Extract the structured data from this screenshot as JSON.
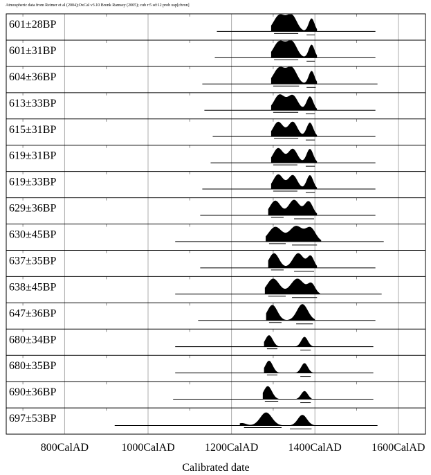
{
  "header_note": "Atmospheric data from Reimer et al (2004);OxCal v3.10 Bronk Ramsey (2005); cub r:5 sd:12 prob usp[chron]",
  "chart_data": {
    "type": "multiplot",
    "subtype": "radiocarbon calibration probability distributions",
    "title": "",
    "xlabel": "Calibrated date",
    "ylabel": "",
    "xlim": [
      660,
      1665
    ],
    "x_ticks": [
      {
        "value": 800,
        "label": "800CalAD"
      },
      {
        "value": 1000,
        "label": "1000CalAD"
      },
      {
        "value": 1200,
        "label": "1200CalAD"
      },
      {
        "value": 1400,
        "label": "1400CalAD"
      },
      {
        "value": 1600,
        "label": "1600CalAD"
      }
    ],
    "grid": true,
    "colors": {
      "fill": "#000000",
      "grid": "#aaaaaa",
      "frame": "#000000"
    },
    "series": [
      {
        "name": "601±28BP",
        "line": [
          1165,
          1545
        ],
        "peaks": [
          [
            1315,
            14,
            1
          ],
          [
            1345,
            12,
            0.95
          ],
          [
            1392,
            7,
            0.8
          ]
        ],
        "range": [
          1295,
          1405
        ],
        "hpd": [
          [
            1302,
            1360
          ],
          [
            1380,
            1400
          ]
        ]
      },
      {
        "name": "601±31BP",
        "line": [
          1160,
          1545
        ],
        "peaks": [
          [
            1315,
            14,
            1
          ],
          [
            1345,
            12,
            0.95
          ],
          [
            1392,
            7,
            0.8
          ]
        ],
        "range": [
          1295,
          1405
        ],
        "hpd": [
          [
            1302,
            1360
          ],
          [
            1380,
            1400
          ]
        ]
      },
      {
        "name": "604±36BP",
        "line": [
          1130,
          1550
        ],
        "peaks": [
          [
            1315,
            14,
            1
          ],
          [
            1345,
            12,
            0.95
          ],
          [
            1392,
            7,
            0.8
          ]
        ],
        "range": [
          1295,
          1405
        ],
        "hpd": [
          [
            1300,
            1362
          ],
          [
            1380,
            1402
          ]
        ]
      },
      {
        "name": "613±33BP",
        "line": [
          1135,
          1545
        ],
        "peaks": [
          [
            1315,
            13,
            0.95
          ],
          [
            1347,
            12,
            0.9
          ],
          [
            1388,
            8,
            0.85
          ]
        ],
        "range": [
          1295,
          1405
        ],
        "hpd": [
          [
            1300,
            1360
          ],
          [
            1378,
            1400
          ]
        ]
      },
      {
        "name": "615±31BP",
        "line": [
          1155,
          1545
        ],
        "peaks": [
          [
            1312,
            12,
            0.9
          ],
          [
            1347,
            11,
            0.9
          ],
          [
            1388,
            8,
            0.85
          ]
        ],
        "range": [
          1295,
          1405
        ],
        "hpd": [
          [
            1302,
            1360
          ],
          [
            1378,
            1400
          ]
        ]
      },
      {
        "name": "619±31BP",
        "line": [
          1150,
          1545
        ],
        "peaks": [
          [
            1312,
            12,
            0.9
          ],
          [
            1347,
            11,
            0.85
          ],
          [
            1388,
            8,
            0.85
          ]
        ],
        "range": [
          1295,
          1405
        ],
        "hpd": [
          [
            1300,
            1358
          ],
          [
            1378,
            1400
          ]
        ]
      },
      {
        "name": "619±33BP",
        "line": [
          1130,
          1545
        ],
        "peaks": [
          [
            1312,
            12,
            0.9
          ],
          [
            1347,
            11,
            0.85
          ],
          [
            1388,
            8,
            0.85
          ]
        ],
        "range": [
          1295,
          1405
        ],
        "hpd": [
          [
            1300,
            1358
          ],
          [
            1378,
            1400
          ]
        ]
      },
      {
        "name": "629±36BP",
        "line": [
          1125,
          1545
        ],
        "peaks": [
          [
            1305,
            13,
            0.9
          ],
          [
            1350,
            13,
            0.95
          ],
          [
            1385,
            10,
            0.85
          ]
        ],
        "range": [
          1288,
          1405
        ],
        "hpd": [
          [
            1295,
            1325
          ],
          [
            1350,
            1398
          ]
        ]
      },
      {
        "name": "630±45BP",
        "line": [
          1065,
          1565
        ],
        "peaks": [
          [
            1305,
            16,
            0.9
          ],
          [
            1355,
            16,
            0.95
          ],
          [
            1390,
            12,
            0.8
          ]
        ],
        "range": [
          1282,
          1415
        ],
        "hpd": [
          [
            1290,
            1330
          ],
          [
            1345,
            1405
          ]
        ]
      },
      {
        "name": "637±35BP",
        "line": [
          1125,
          1545
        ],
        "peaks": [
          [
            1302,
            12,
            0.9
          ],
          [
            1360,
            13,
            0.9
          ],
          [
            1390,
            8,
            0.7
          ]
        ],
        "range": [
          1288,
          1405
        ],
        "hpd": [
          [
            1295,
            1325
          ],
          [
            1350,
            1398
          ]
        ]
      },
      {
        "name": "638±45BP",
        "line": [
          1065,
          1560
        ],
        "peaks": [
          [
            1300,
            15,
            0.95
          ],
          [
            1358,
            16,
            0.95
          ],
          [
            1392,
            9,
            0.6
          ]
        ],
        "range": [
          1280,
          1412
        ],
        "hpd": [
          [
            1288,
            1330
          ],
          [
            1345,
            1405
          ]
        ]
      },
      {
        "name": "647±36BP",
        "line": [
          1120,
          1545
        ],
        "peaks": [
          [
            1298,
            12,
            0.95
          ],
          [
            1370,
            13,
            1
          ]
        ],
        "range": [
          1283,
          1400
        ],
        "hpd": [
          [
            1290,
            1320
          ],
          [
            1355,
            1395
          ]
        ]
      },
      {
        "name": "680±34BP",
        "line": [
          1065,
          1540
        ],
        "peaks": [
          [
            1290,
            9,
            0.7
          ],
          [
            1375,
            8,
            0.6
          ]
        ],
        "range": [
          1278,
          1395
        ],
        "hpd": [
          [
            1285,
            1310
          ],
          [
            1365,
            1390
          ]
        ]
      },
      {
        "name": "680±35BP",
        "line": [
          1065,
          1540
        ],
        "peaks": [
          [
            1290,
            9,
            0.75
          ],
          [
            1375,
            8,
            0.6
          ]
        ],
        "range": [
          1278,
          1395
        ],
        "hpd": [
          [
            1285,
            1310
          ],
          [
            1365,
            1390
          ]
        ]
      },
      {
        "name": "690±36BP",
        "line": [
          1060,
          1540
        ],
        "peaks": [
          [
            1287,
            10,
            0.8
          ],
          [
            1375,
            8,
            0.5
          ]
        ],
        "range": [
          1275,
          1392
        ],
        "hpd": [
          [
            1280,
            1312
          ],
          [
            1365,
            1390
          ]
        ]
      },
      {
        "name": "697±53BP",
        "line": [
          920,
          1550
        ],
        "peaks": [
          [
            1283,
            14,
            0.8
          ],
          [
            1370,
            11,
            0.65
          ],
          [
            1225,
            10,
            0.15
          ]
        ],
        "range": [
          1220,
          1400
        ],
        "hpd": [
          [
            1230,
            1320
          ],
          [
            1340,
            1392
          ]
        ]
      }
    ]
  }
}
